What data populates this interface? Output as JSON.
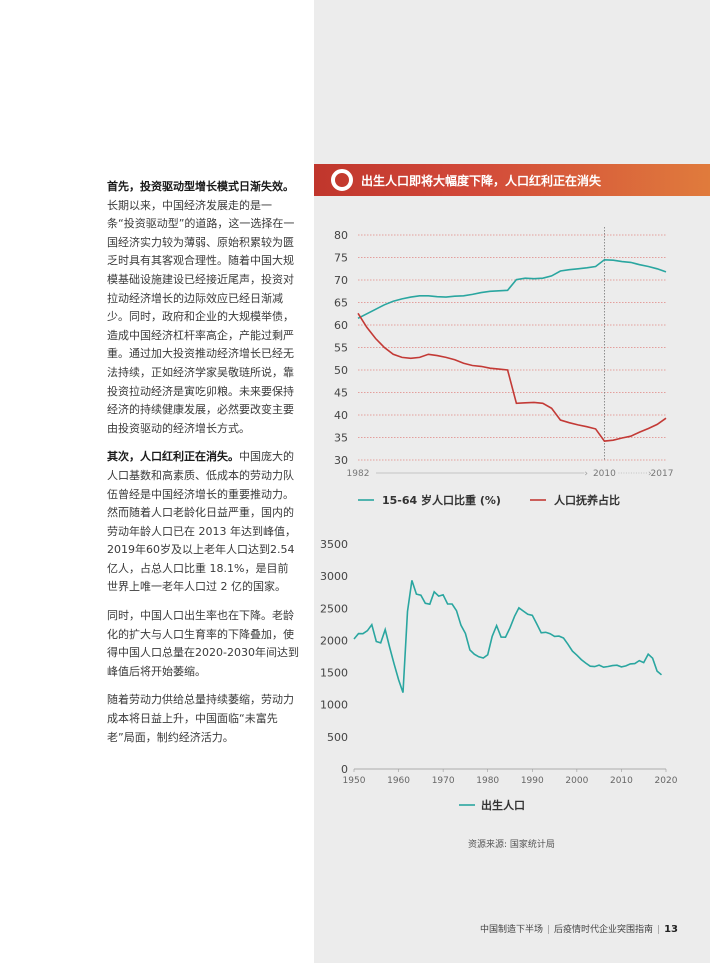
{
  "left_text": {
    "p1_bold": "首先，投资驱动型增长模式日渐失效。",
    "p1_body": "长期以来，中国经济发展走的是一条“投资驱动型”的道路，这一选择在一国经济实力较为薄弱、原始积累较为匮乏时具有其客观合理性。随着中国大规模基础设施建设已经接近尾声，投资对拉动经济增长的边际效应已经日渐减少。同时，政府和企业的大规模举债，造成中国经济杠杆率高企，产能过剩严重。通过加大投资推动经济增长已经无法持续，正如经济学家吴敬琏所说，靠投资拉动经济是寅吃卯粮。未来要保持经济的持续健康发展，必然要改变主要由投资驱动的经济增长方式。",
    "p2_bold": "其次，人口红利正在消失。",
    "p2_body": "中国庞大的人口基数和高素质、低成本的劳动力队伍曾经是中国经济增长的重要推动力。然而随着人口老龄化日益严重，国内的劳动年龄人口已在 2013 年达到峰值，2019年60岁及以上老年人口达到2.54亿人，占总人口比重 18.1%，是目前世界上唯一老年人口过 2 亿的国家。",
    "p3": "同时，中国人口出生率也在下降。老龄化的扩大与人口生育率的下降叠加，使得中国人口总量在2020-2030年间达到峰值后将开始萎缩。",
    "p4": "随着劳动力供给总量持续萎缩，劳动力成本将日益上升，中国面临“未富先老”局面，制约经济活力。"
  },
  "banner": {
    "title": "出生人口即将大幅度下降，人口红利正在消失"
  },
  "colors": {
    "teal": "#2aa6a0",
    "red": "#c33a36",
    "banner_start": "#c0362c",
    "banner_end": "#e07b3c"
  },
  "chart_data": [
    {
      "type": "line",
      "x_start_label": "1982",
      "x_mid_label": "2010",
      "x_end_label": "2017",
      "y_ticks": [
        "80",
        "75",
        "70",
        "65",
        "60",
        "55",
        "50",
        "45",
        "40",
        "35",
        "30"
      ],
      "ylim": [
        30,
        80
      ],
      "xlim": [
        1982,
        2017
      ],
      "reference_line_x": 2010,
      "series": [
        {
          "name": "15-64 岁人口比重 (%)",
          "color": "#2aa6a0",
          "x": [
            1982,
            1983,
            1984,
            1985,
            1986,
            1987,
            1988,
            1989,
            1990,
            1991,
            1992,
            1993,
            1994,
            1995,
            1996,
            1997,
            1998,
            1999,
            2000,
            2001,
            2002,
            2003,
            2004,
            2005,
            2006,
            2007,
            2008,
            2009,
            2010,
            2011,
            2012,
            2013,
            2014,
            2015,
            2016,
            2017
          ],
          "values": [
            61.5,
            62.5,
            63.5,
            64.5,
            65.3,
            65.8,
            66.2,
            66.5,
            66.5,
            66.3,
            66.2,
            66.4,
            66.5,
            66.8,
            67.2,
            67.5,
            67.6,
            67.7,
            70.1,
            70.4,
            70.3,
            70.4,
            70.9,
            72.0,
            72.3,
            72.5,
            72.7,
            73.0,
            74.5,
            74.4,
            74.1,
            73.9,
            73.4,
            73.0,
            72.5,
            71.8
          ]
        },
        {
          "name": "人口抚养占比",
          "color": "#c33a36",
          "x": [
            1982,
            1983,
            1984,
            1985,
            1986,
            1987,
            1988,
            1989,
            1990,
            1991,
            1992,
            1993,
            1994,
            1995,
            1996,
            1997,
            1998,
            1999,
            2000,
            2001,
            2002,
            2003,
            2004,
            2005,
            2006,
            2007,
            2008,
            2009,
            2010,
            2011,
            2012,
            2013,
            2014,
            2015,
            2016,
            2017
          ],
          "values": [
            62.6,
            59.5,
            57.0,
            55.0,
            53.5,
            52.8,
            52.6,
            52.8,
            53.5,
            53.2,
            52.8,
            52.3,
            51.5,
            51.0,
            50.8,
            50.4,
            50.2,
            50.0,
            42.6,
            42.7,
            42.8,
            42.6,
            41.5,
            38.9,
            38.3,
            37.8,
            37.4,
            36.9,
            34.2,
            34.4,
            34.9,
            35.3,
            36.2,
            37.0,
            37.9,
            39.3
          ]
        }
      ]
    },
    {
      "type": "line",
      "x_ticks": [
        "1950",
        "1960",
        "1970",
        "1980",
        "1990",
        "2000",
        "2010",
        "2020"
      ],
      "y_ticks": [
        "3500",
        "3000",
        "2500",
        "2000",
        "1500",
        "1000",
        "500",
        "0"
      ],
      "ylim": [
        0,
        3500
      ],
      "xlim": [
        1950,
        2020
      ],
      "series": [
        {
          "name": "出生人口",
          "color": "#2aa6a0",
          "x": [
            1950,
            1951,
            1952,
            1953,
            1954,
            1955,
            1956,
            1957,
            1958,
            1959,
            1960,
            1961,
            1962,
            1963,
            1964,
            1965,
            1966,
            1967,
            1968,
            1969,
            1970,
            1971,
            1972,
            1973,
            1974,
            1975,
            1976,
            1977,
            1978,
            1979,
            1980,
            1981,
            1982,
            1983,
            1984,
            1985,
            1986,
            1987,
            1988,
            1989,
            1990,
            1991,
            1992,
            1993,
            1994,
            1995,
            1996,
            1997,
            1998,
            1999,
            2000,
            2001,
            2002,
            2003,
            2004,
            2005,
            2006,
            2007,
            2008,
            2009,
            2010,
            2011,
            2012,
            2013,
            2014,
            2015,
            2016,
            2017,
            2018,
            2019
          ],
          "values": [
            2023,
            2107,
            2105,
            2151,
            2245,
            1984,
            1961,
            2169,
            1890,
            1635,
            1389,
            1188,
            2451,
            2934,
            2721,
            2704,
            2577,
            2563,
            2757,
            2690,
            2710,
            2567,
            2566,
            2463,
            2235,
            2109,
            1853,
            1786,
            1745,
            1727,
            1776,
            2064,
            2230,
            2052,
            2050,
            2196,
            2374,
            2508,
            2457,
            2407,
            2391,
            2258,
            2119,
            2126,
            2104,
            2063,
            2067,
            2038,
            1942,
            1834,
            1771,
            1702,
            1647,
            1599,
            1593,
            1617,
            1584,
            1594,
            1608,
            1615,
            1588,
            1604,
            1635,
            1640,
            1687,
            1655,
            1786,
            1723,
            1523,
            1465
          ]
        }
      ]
    }
  ],
  "source": "资源来源: 国家统计局",
  "footer": {
    "left": "中国制造下半场",
    "right": "后疫情时代企业突围指南",
    "page": "13"
  }
}
